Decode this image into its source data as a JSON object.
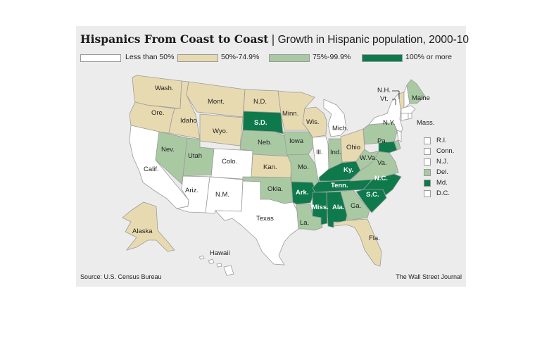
{
  "header": {
    "title_bold": "Hispanics From Coast to Coast",
    "separator": "|",
    "title_sub": "Growth in Hispanic population, 2000-10"
  },
  "legend": [
    {
      "label": "Less than 50%",
      "color": "#ffffff"
    },
    {
      "label": "50%-74.9%",
      "color": "#e8dab0"
    },
    {
      "label": "75%-99.9%",
      "color": "#a9c9a3"
    },
    {
      "label": "100% or more",
      "color": "#0e7a4c"
    }
  ],
  "states": {
    "wa": "Wash.",
    "or": "Ore.",
    "ca": "Calif.",
    "id": "Idaho",
    "nv": "Nev.",
    "mt": "Mont.",
    "wy": "Wyo.",
    "ut": "Utah",
    "co": "Colo.",
    "az": "Ariz.",
    "nm": "N.M.",
    "nd": "N.D.",
    "sd": "S.D.",
    "ne": "Neb.",
    "ks": "Kan.",
    "ok": "Okla.",
    "tx": "Texas",
    "mn": "Minn.",
    "ia": "Iowa",
    "mo": "Mo.",
    "ar": "Ark.",
    "la": "La.",
    "wi": "Wis.",
    "il": "Ill.",
    "mi": "Mich.",
    "in": "Ind.",
    "oh": "Ohio",
    "ky": "Ky.",
    "tn": "Tenn.",
    "ms": "Miss.",
    "al": "Ala.",
    "ga": "Ga.",
    "fl": "Fla.",
    "sc": "S.C.",
    "nc": "N.C.",
    "va": "Va.",
    "wv": "W.Va.",
    "pa": "Pa.",
    "ny": "N.Y.",
    "vt": "Vt.",
    "nh": "N.H.",
    "me": "Maine",
    "ma": "Mass.",
    "ak": "Alaska",
    "hi": "Hawaii"
  },
  "small_states": [
    {
      "label": "R.I.",
      "color": "#ffffff"
    },
    {
      "label": "Conn.",
      "color": "#ffffff"
    },
    {
      "label": "N.J.",
      "color": "#ffffff"
    },
    {
      "label": "Del.",
      "color": "#a9c9a3"
    },
    {
      "label": "Md.",
      "color": "#0e7a4c"
    },
    {
      "label": "D.C.",
      "color": "#ffffff"
    }
  ],
  "footer": {
    "source": "Source: U.S. Census Bureau",
    "credit": "The Wall Street Journal"
  }
}
